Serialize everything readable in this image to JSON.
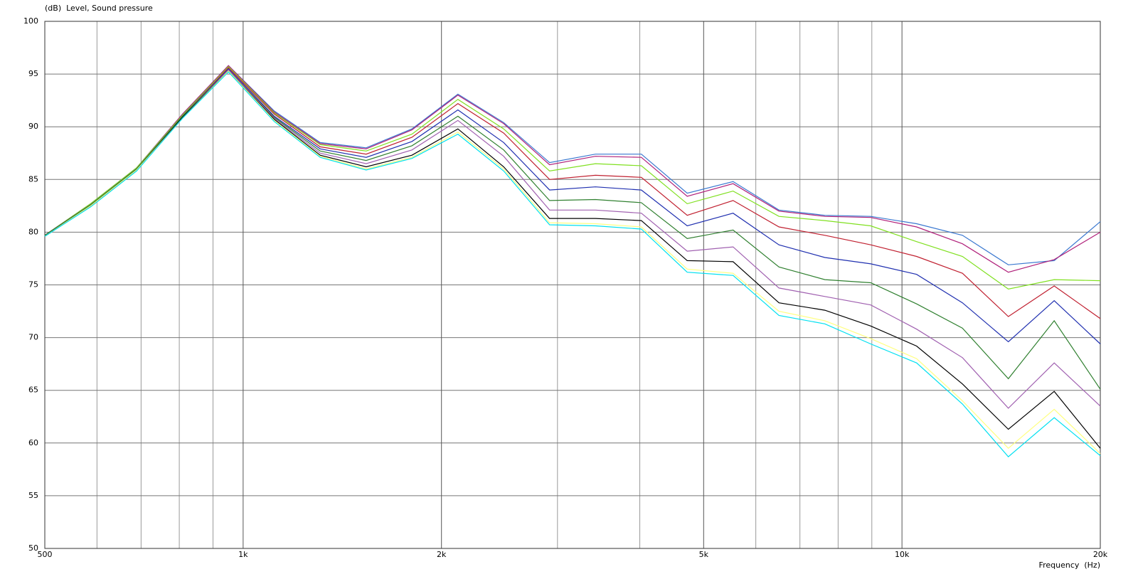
{
  "chart_data": {
    "type": "line",
    "y_label": "(dB)  Level, Sound pressure",
    "x_label": "Frequency  (Hz)",
    "log_x": true,
    "grid": true,
    "x": [
      500,
      587,
      689,
      809,
      950,
      1115,
      1309,
      1537,
      1804,
      2118,
      2486,
      2918,
      3426,
      4022,
      4721,
      5542,
      6506,
      7637,
      8966,
      10525,
      12355,
      14504,
      17026,
      20000
    ],
    "xlim": [
      500,
      20000
    ],
    "xticks": [
      500,
      {
        "value": 1000,
        "label": "1k"
      },
      {
        "value": 2000,
        "label": "2k"
      },
      {
        "value": 5000,
        "label": "5k"
      },
      {
        "value": 10000,
        "label": "10k"
      },
      {
        "value": 20000,
        "label": "20k"
      }
    ],
    "xminor": [
      600,
      700,
      800,
      900,
      3000,
      4000,
      6000,
      7000,
      8000,
      9000
    ],
    "ylim": [
      50,
      100
    ],
    "yticks": [
      50,
      55,
      60,
      65,
      70,
      75,
      80,
      85,
      90,
      95,
      100
    ],
    "series": [
      {
        "color": "#3a78d0",
        "values": [
          79.7,
          82.7,
          86.1,
          91.2,
          95.8,
          91.5,
          88.5,
          88.0,
          89.8,
          93.1,
          90.4,
          86.6,
          87.4,
          87.4,
          83.7,
          84.8,
          82.1,
          81.6,
          81.5,
          80.8,
          79.7,
          76.9,
          77.3,
          81.0
        ]
      },
      {
        "color": "#b0207a",
        "values": [
          79.7,
          82.7,
          86.1,
          91.2,
          95.8,
          91.4,
          88.4,
          87.9,
          89.7,
          93.0,
          90.3,
          86.4,
          87.2,
          87.1,
          83.4,
          84.6,
          82.0,
          81.5,
          81.4,
          80.5,
          78.9,
          76.2,
          77.4,
          80.0
        ]
      },
      {
        "color": "#80e020",
        "values": [
          79.7,
          82.7,
          86.1,
          91.1,
          95.7,
          91.3,
          88.3,
          87.7,
          89.3,
          92.6,
          89.8,
          85.8,
          86.5,
          86.3,
          82.7,
          83.9,
          81.5,
          81.1,
          80.6,
          79.1,
          77.7,
          74.6,
          75.5,
          75.4
        ]
      },
      {
        "color": "#c02030",
        "values": [
          79.7,
          82.6,
          86.0,
          91.0,
          95.6,
          91.2,
          88.1,
          87.4,
          89.0,
          92.2,
          89.4,
          85.0,
          85.4,
          85.2,
          81.6,
          83.0,
          80.5,
          79.7,
          78.8,
          77.7,
          76.1,
          72.0,
          74.9,
          71.8
        ]
      },
      {
        "color": "#2030b0",
        "values": [
          79.7,
          82.6,
          86.0,
          91.0,
          95.5,
          91.0,
          87.9,
          87.1,
          88.6,
          91.6,
          88.5,
          84.0,
          84.3,
          84.0,
          80.6,
          81.8,
          78.8,
          77.6,
          77.0,
          76.0,
          73.3,
          69.6,
          73.5,
          69.4
        ]
      },
      {
        "color": "#308030",
        "values": [
          79.7,
          82.6,
          86.0,
          91.0,
          95.4,
          90.9,
          87.7,
          86.8,
          88.2,
          91.0,
          87.8,
          83.0,
          83.1,
          82.8,
          79.4,
          80.2,
          76.7,
          75.5,
          75.2,
          73.2,
          70.9,
          66.1,
          71.6,
          65.1
        ]
      },
      {
        "color": "#a060b0",
        "values": [
          79.6,
          82.5,
          85.9,
          90.9,
          95.4,
          90.8,
          87.5,
          86.5,
          87.8,
          90.6,
          87.2,
          82.1,
          82.1,
          81.8,
          78.2,
          78.6,
          74.7,
          73.9,
          73.1,
          70.8,
          68.1,
          63.3,
          67.6,
          63.5
        ]
      },
      {
        "color": "#000000",
        "values": [
          79.6,
          82.5,
          85.9,
          90.9,
          95.3,
          90.7,
          87.3,
          86.2,
          87.3,
          89.8,
          86.2,
          81.3,
          81.3,
          81.1,
          77.3,
          77.2,
          73.3,
          72.6,
          71.1,
          69.2,
          65.6,
          61.3,
          64.9,
          59.5
        ]
      },
      {
        "color": "#ffff80",
        "values": [
          79.6,
          82.5,
          85.9,
          90.8,
          95.3,
          90.6,
          87.2,
          86.0,
          87.1,
          89.5,
          86.0,
          80.9,
          80.8,
          80.5,
          76.5,
          76.1,
          72.5,
          71.6,
          69.9,
          68.0,
          64.0,
          59.5,
          63.2,
          59.0
        ]
      },
      {
        "color": "#00e0f0",
        "values": [
          79.6,
          82.4,
          85.8,
          90.8,
          95.2,
          90.5,
          87.1,
          85.9,
          87.0,
          89.3,
          85.8,
          80.7,
          80.6,
          80.3,
          76.2,
          75.9,
          72.1,
          71.3,
          69.4,
          67.6,
          63.7,
          58.7,
          62.4,
          58.8
        ]
      }
    ]
  }
}
